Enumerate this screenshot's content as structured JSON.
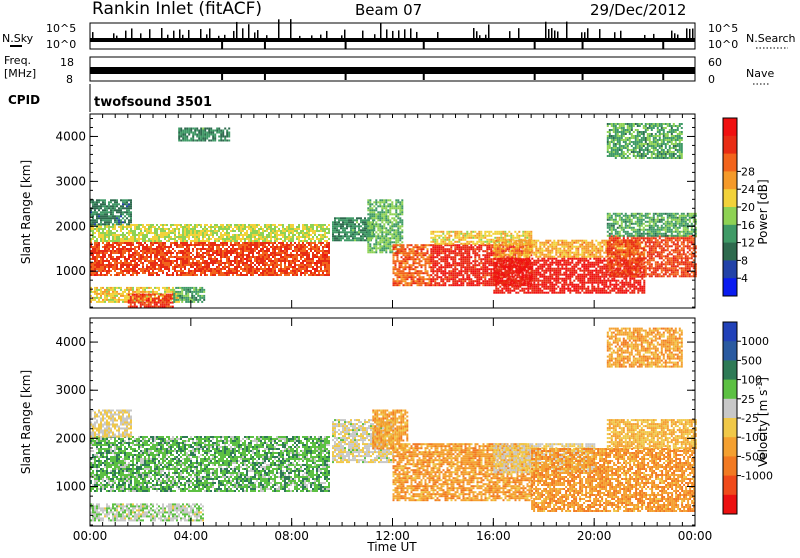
{
  "header": {
    "station": "Rankin Inlet (fitACF)",
    "beam": "Beam 07",
    "date": "29/Dec/2012"
  },
  "status_panels": {
    "nsky": {
      "label": "N.Sky",
      "ticks": [
        "10^5",
        "10^0"
      ]
    },
    "nsearch": {
      "label": "N.Search",
      "ticks": [
        "10^5",
        "10^0"
      ]
    },
    "freq": {
      "label_line1": "Freq.",
      "label_line2": "[MHz]",
      "ticks": [
        "18",
        "8"
      ]
    },
    "nave": {
      "label": "Nave",
      "ticks": [
        "60",
        "0"
      ]
    },
    "cpid": {
      "label": "CPID",
      "value": "twofsound 3501"
    }
  },
  "x_axis": {
    "title": "Time UT",
    "ticks": [
      "00:00",
      "04:00",
      "08:00",
      "12:00",
      "16:00",
      "20:00",
      "00:00"
    ],
    "range_hours": [
      0,
      24
    ]
  },
  "colors": {
    "power_scale": [
      "#0a1cf0",
      "#2242a8",
      "#2e6a4e",
      "#3f9a66",
      "#8ed254",
      "#f2d23a",
      "#f59a2a",
      "#f2641c",
      "#e82c14",
      "#f01010"
    ],
    "velocity_scale": [
      "#2141b8",
      "#2a5aa0",
      "#2e7a56",
      "#5cc042",
      "#c8c8c8",
      "#f0c848",
      "#f4a030",
      "#f27a22",
      "#f04a1a",
      "#ec1010"
    ]
  },
  "chart_data": [
    {
      "type": "heatmap",
      "panel": "power",
      "ylabel": "Slant Range [km]",
      "ylim": [
        180,
        4500
      ],
      "y_ticks": [
        1000,
        2000,
        3000,
        4000
      ],
      "colorbar_label": "Power [dB]",
      "colorbar_ticks": [
        "4",
        "8",
        "12",
        "16",
        "20",
        "24",
        "28"
      ],
      "colorbar_range": [
        0,
        32
      ],
      "regions": [
        {
          "t": [
            0.0,
            9.5
          ],
          "r": [
            900,
            1650
          ],
          "value": 26
        },
        {
          "t": [
            0.0,
            9.5
          ],
          "r": [
            1650,
            2050
          ],
          "value": 16
        },
        {
          "t": [
            0.0,
            1.6
          ],
          "r": [
            2050,
            2600
          ],
          "value": 9
        },
        {
          "t": [
            0.0,
            3.5
          ],
          "r": [
            300,
            650
          ],
          "value": 18
        },
        {
          "t": [
            1.5,
            3.3
          ],
          "r": [
            200,
            500
          ],
          "value": 27
        },
        {
          "t": [
            3.3,
            4.5
          ],
          "r": [
            300,
            650
          ],
          "value": 12
        },
        {
          "t": [
            9.6,
            11.2
          ],
          "r": [
            1700,
            2200
          ],
          "value": 10
        },
        {
          "t": [
            11.0,
            12.4
          ],
          "r": [
            1400,
            2600
          ],
          "value": 13
        },
        {
          "t": [
            12.0,
            13.5
          ],
          "r": [
            700,
            1600
          ],
          "value": 24
        },
        {
          "t": [
            13.5,
            17.5
          ],
          "r": [
            700,
            1600
          ],
          "value": 28
        },
        {
          "t": [
            13.5,
            17.5
          ],
          "r": [
            1600,
            1900
          ],
          "value": 18
        },
        {
          "t": [
            16.0,
            22.0
          ],
          "r": [
            500,
            1300
          ],
          "value": 29
        },
        {
          "t": [
            16.0,
            22.0
          ],
          "r": [
            1300,
            1700
          ],
          "value": 20
        },
        {
          "t": [
            20.5,
            24.0
          ],
          "r": [
            900,
            1800
          ],
          "value": 26
        },
        {
          "t": [
            20.5,
            24.0
          ],
          "r": [
            1800,
            2300
          ],
          "value": 12
        },
        {
          "t": [
            3.5,
            5.5
          ],
          "r": [
            3900,
            4200
          ],
          "value": 10
        },
        {
          "t": [
            20.5,
            23.5
          ],
          "r": [
            3500,
            4300
          ],
          "value": 12
        }
      ]
    },
    {
      "type": "heatmap",
      "panel": "velocity",
      "ylabel": "Slant Range [km]",
      "ylim": [
        180,
        4500
      ],
      "y_ticks": [
        1000,
        2000,
        3000,
        4000
      ],
      "colorbar_label": "Velocity [m s^-1]",
      "colorbar_ticks": [
        "1000",
        "500",
        "100",
        "25",
        "-25",
        "-100",
        "-500",
        "-1000"
      ],
      "colorbar_range": [
        -1000,
        1000
      ],
      "regions": [
        {
          "t": [
            0.0,
            9.5
          ],
          "r": [
            900,
            2050
          ],
          "value": 320
        },
        {
          "t": [
            0.0,
            1.6
          ],
          "r": [
            2050,
            2600
          ],
          "value": 0
        },
        {
          "t": [
            0.0,
            4.5
          ],
          "r": [
            300,
            650
          ],
          "value": 150
        },
        {
          "t": [
            9.6,
            12.0
          ],
          "r": [
            1500,
            2400
          ],
          "value": 60
        },
        {
          "t": [
            11.2,
            12.6
          ],
          "r": [
            1800,
            2600
          ],
          "value": -300
        },
        {
          "t": [
            12.0,
            17.5
          ],
          "r": [
            700,
            1900
          ],
          "value": -320
        },
        {
          "t": [
            16.0,
            20.0
          ],
          "r": [
            1300,
            1900
          ],
          "value": 0
        },
        {
          "t": [
            17.5,
            24.0
          ],
          "r": [
            500,
            1800
          ],
          "value": -350
        },
        {
          "t": [
            20.5,
            24.0
          ],
          "r": [
            1800,
            2400
          ],
          "value": -200
        },
        {
          "t": [
            20.5,
            23.5
          ],
          "r": [
            3500,
            4300
          ],
          "value": -300
        }
      ]
    }
  ]
}
